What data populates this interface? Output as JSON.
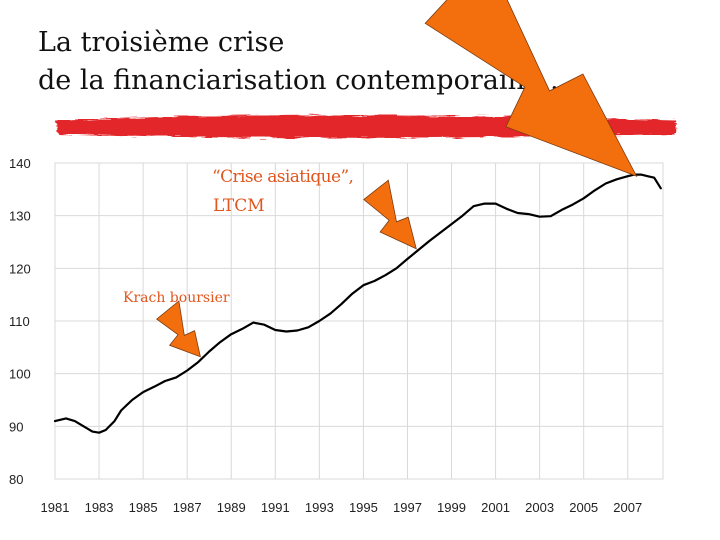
{
  "slide": {
    "title_line1": "La troisième crise",
    "title_line2": "de la financiarisation contemporaine…"
  },
  "colors": {
    "line": "#000000",
    "grid": "#d9d9d9",
    "annotation": "#e0561e",
    "lightning": "#f36f0e",
    "brush_stroke": "#e3262a"
  },
  "chart_data": {
    "type": "line",
    "title": "",
    "xlabel": "",
    "ylabel": "",
    "xlim": [
      1981,
      2008.6
    ],
    "ylim": [
      80,
      140
    ],
    "grid": true,
    "x_ticks": [
      "1981",
      "1983",
      "1985",
      "1987",
      "1989",
      "1991",
      "1993",
      "1995",
      "1997",
      "1999",
      "2001",
      "2003",
      "2005",
      "2007"
    ],
    "y_ticks": [
      "140",
      "130",
      "120",
      "110",
      "100",
      "90",
      "80"
    ],
    "series": [
      {
        "x": [
          1981,
          1981.5,
          1981.9,
          1982.3,
          1982.7,
          1983.0,
          1983.3,
          1983.7,
          1984,
          1984.5,
          1985,
          1985.5,
          1986,
          1986.5,
          1987,
          1987.5,
          1988,
          1988.5,
          1989,
          1989.5,
          1990,
          1990.5,
          1991,
          1991.5,
          1992,
          1992.5,
          1993,
          1993.5,
          1994,
          1994.5,
          1995,
          1995.5,
          1996,
          1996.5,
          1997,
          1997.5,
          1998,
          1998.5,
          1999,
          1999.5,
          2000,
          2000.5,
          2001,
          2001.5,
          2002,
          2002.5,
          2003,
          2003.5,
          2004,
          2004.5,
          2005,
          2005.5,
          2006,
          2006.5,
          2007,
          2007.3,
          2007.6,
          2007.9,
          2008.2,
          2008.5
        ],
        "y": [
          91.0,
          91.5,
          91.0,
          90.0,
          89.0,
          88.8,
          89.3,
          91.0,
          93.0,
          95.0,
          96.5,
          97.5,
          98.6,
          99.3,
          100.6,
          102.2,
          104.2,
          106.0,
          107.5,
          108.5,
          109.7,
          109.3,
          108.3,
          108.0,
          108.2,
          108.8,
          110.0,
          111.4,
          113.2,
          115.2,
          116.8,
          117.6,
          118.7,
          120.0,
          121.8,
          123.5,
          125.2,
          126.8,
          128.4,
          130.0,
          131.8,
          132.3,
          132.3,
          131.3,
          130.5,
          130.3,
          129.8,
          129.9,
          131.1,
          132.1,
          133.3,
          134.8,
          136.1,
          136.9,
          137.5,
          137.8,
          137.8,
          137.5,
          137.2,
          135.2
        ]
      }
    ],
    "annotations": [
      {
        "text": "Krach boursier",
        "x": 1987.6,
        "y": 103.2
      },
      {
        "text": "“Crise asiatique”,",
        "x": 1997.4,
        "y": 123.7
      },
      {
        "text": "LTCM",
        "x": 1997.4,
        "y": 123.7
      },
      {
        "text": "",
        "x": 2007.4,
        "y": 137.5
      }
    ]
  }
}
